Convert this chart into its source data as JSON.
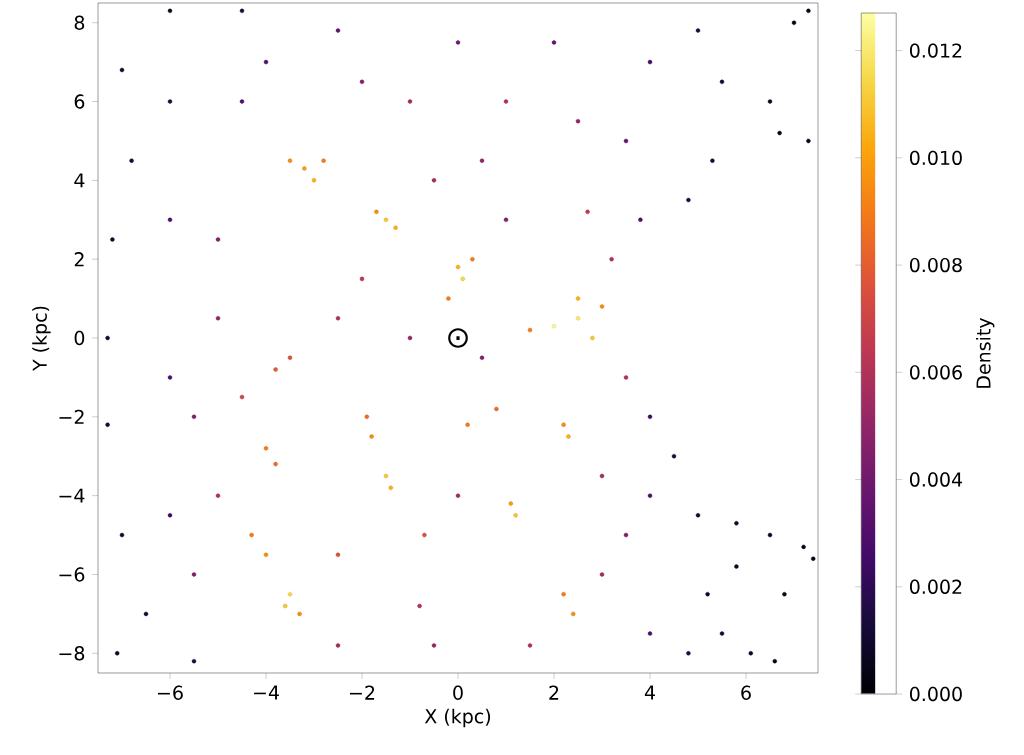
{
  "chart_data": {
    "type": "scatter",
    "xlabel": "X (kpc)",
    "ylabel": "Y (kpc)",
    "clabel": "Density",
    "marker": "circle",
    "xlim": [
      -7.5,
      7.5
    ],
    "ylim": [
      -8.5,
      8.5
    ],
    "xticks": [
      {
        "value": -6,
        "label": "−6"
      },
      {
        "value": -4,
        "label": "−4"
      },
      {
        "value": -2,
        "label": "−2"
      },
      0,
      2,
      4,
      6
    ],
    "yticks": [
      {
        "value": -8,
        "label": "−8"
      },
      {
        "value": -6,
        "label": "−6"
      },
      {
        "value": -4,
        "label": "−4"
      },
      {
        "value": -2,
        "label": "−2"
      },
      0,
      2,
      4,
      6,
      8
    ],
    "clim": [
      0,
      0.0127
    ],
    "cticks": [
      {
        "value": 0,
        "label": "0.000"
      },
      0.002,
      0.004,
      0.006,
      0.008,
      {
        "value": 0.01,
        "label": "0.010"
      },
      0.012
    ],
    "annotations": [
      {
        "text": "⊙",
        "x": 0,
        "y": 0
      }
    ],
    "x": [
      -3.2,
      -3.0,
      -3.5,
      -2.8,
      -1.5,
      -1.3,
      -1.7,
      0.1,
      0.0,
      -0.2,
      0.3,
      2.0,
      2.5,
      2.8,
      1.5,
      2.5,
      3.0,
      -3.8,
      -3.5,
      -4.0,
      -3.8,
      -1.8,
      -1.5,
      -1.4,
      -1.9,
      0.2,
      0.8,
      2.3,
      2.2,
      1.2,
      1.1,
      -3.5,
      -3.6,
      -4.0,
      -4.3,
      -3.3,
      2.4,
      2.2,
      -0.7,
      -2.5,
      1.0,
      -1.0,
      2.5,
      2.7,
      -0.8,
      -5.0,
      -5.0,
      -4.5,
      -2.5,
      -2.0,
      -1.0,
      0.5,
      1.0,
      -0.5,
      0.5,
      -2.0,
      0.0,
      2.0,
      3.5,
      3.2,
      3.5,
      3.0,
      3.5,
      3.0,
      0.0,
      -0.5,
      1.5,
      -2.5,
      -5.0,
      -5.5,
      -5.5,
      -4.0,
      -2.5,
      4.0,
      4.0,
      4.0,
      3.8,
      4.0,
      -6.0,
      -6.0,
      -6.0,
      -4.5,
      -6.0,
      -7.0,
      -6.8,
      -7.2,
      -7.3,
      -7.3,
      -7.0,
      -7.1,
      -6.5,
      -5.5,
      -6.0,
      -4.5,
      7.0,
      7.3,
      6.5,
      6.7,
      7.3,
      5.5,
      5.0,
      5.3,
      4.8,
      4.5,
      5.0,
      5.8,
      6.5,
      7.2,
      7.4,
      6.8,
      5.2,
      5.5,
      6.1,
      6.6,
      4.8,
      5.8
    ],
    "values": [
      4.3,
      4.0,
      4.5,
      4.5,
      3.0,
      2.8,
      3.2,
      1.5,
      1.8,
      1.0,
      2.0,
      0.3,
      0.5,
      0.0,
      0.2,
      1.0,
      0.8,
      -0.8,
      -0.5,
      -2.8,
      -3.2,
      -2.5,
      -3.5,
      -3.8,
      -2.0,
      -2.2,
      -1.8,
      -2.5,
      -2.2,
      -4.5,
      -4.2,
      -6.5,
      -6.8,
      -5.5,
      -5.0,
      -7.0,
      -7.0,
      -6.5,
      -5.0,
      -5.5,
      6.0,
      6.0,
      5.5,
      3.2,
      -6.8,
      0.5,
      2.5,
      -1.5,
      0.5,
      1.5,
      0.0,
      -0.5,
      3.0,
      4.0,
      4.5,
      6.5,
      7.5,
      7.5,
      5.0,
      2.0,
      -1.0,
      -3.5,
      -5.0,
      -6.0,
      -4.0,
      -7.8,
      -7.8,
      -7.8,
      -4.0,
      -2.0,
      -6.0,
      7.0,
      7.8,
      -2.0,
      -4.0,
      -7.5,
      3.0,
      7.0,
      3.0,
      -1.0,
      -4.5,
      6.0,
      6.0,
      6.8,
      4.5,
      2.5,
      0.0,
      -2.2,
      -5.0,
      -8.0,
      -7.0,
      -8.2,
      8.3,
      8.3,
      8.0,
      8.3,
      6.0,
      5.2,
      5.0,
      6.5,
      7.8,
      4.5,
      3.5,
      -3.0,
      -4.5,
      -4.7,
      -5.0,
      -5.3,
      -5.6,
      -6.5,
      -6.5,
      -7.5,
      -8.0,
      -8.2,
      -8.0,
      -5.8
    ],
    "cvalues": [
      0.01,
      0.0105,
      0.0095,
      0.009,
      0.011,
      0.0105,
      0.0095,
      0.0115,
      0.0105,
      0.009,
      0.009,
      0.0125,
      0.012,
      0.011,
      0.009,
      0.0105,
      0.0095,
      0.008,
      0.0075,
      0.009,
      0.0085,
      0.0095,
      0.011,
      0.0105,
      0.0085,
      0.009,
      0.0085,
      0.0105,
      0.0095,
      0.011,
      0.01,
      0.0115,
      0.011,
      0.0095,
      0.009,
      0.0095,
      0.0095,
      0.009,
      0.0075,
      0.0075,
      0.006,
      0.0055,
      0.005,
      0.0065,
      0.006,
      0.005,
      0.0045,
      0.007,
      0.006,
      0.0065,
      0.005,
      0.0045,
      0.0045,
      0.0055,
      0.005,
      0.0045,
      0.004,
      0.0035,
      0.0035,
      0.006,
      0.006,
      0.0055,
      0.0045,
      0.0055,
      0.0055,
      0.005,
      0.006,
      0.0055,
      0.006,
      0.0045,
      0.0045,
      0.003,
      0.0035,
      0.0025,
      0.003,
      0.003,
      0.003,
      0.0025,
      0.003,
      0.003,
      0.0025,
      0.003,
      0.0015,
      0.001,
      0.0012,
      0.0012,
      0.0012,
      0.0012,
      0.001,
      0.0008,
      0.001,
      0.0015,
      0.0008,
      0.0015,
      0.0005,
      0.0005,
      0.0008,
      0.0005,
      0.0005,
      0.0012,
      0.0015,
      0.0012,
      0.0015,
      0.0015,
      0.0012,
      0.001,
      0.0008,
      0.0005,
      0.0005,
      0.0005,
      0.001,
      0.0012,
      0.0008,
      0.0005,
      0.0015,
      0.0008
    ]
  }
}
